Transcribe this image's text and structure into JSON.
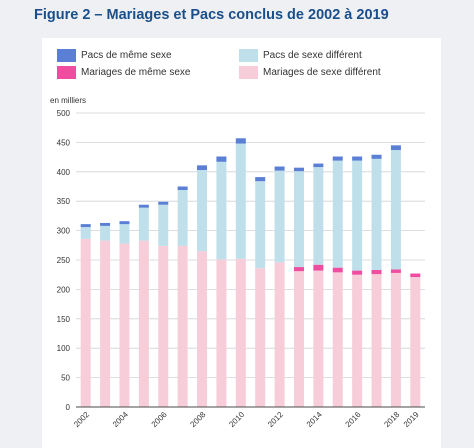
{
  "title": "Figure 2 – Mariages et Pacs conclus de 2002 à 2019",
  "chart_data": {
    "type": "bar",
    "stacked": true,
    "ylabel": "en milliers",
    "ylim": [
      0,
      500
    ],
    "yticks": [
      0,
      50,
      100,
      150,
      200,
      250,
      300,
      350,
      400,
      450,
      500
    ],
    "grid": true,
    "categories": [
      "2002",
      "2003",
      "2004",
      "2005",
      "2006",
      "2007",
      "2008",
      "2009",
      "2010",
      "2011",
      "2012",
      "2013",
      "2014",
      "2015",
      "2016",
      "2017",
      "2018",
      "2019"
    ],
    "xtick_labels": [
      "2002",
      "2004",
      "2006",
      "2008",
      "2010",
      "2012",
      "2014",
      "2016",
      "2018",
      "2019"
    ],
    "legend_position": "top",
    "series": [
      {
        "name": "Mariages de sexe différent",
        "color": "#f7cdd9",
        "values": [
          286,
          283,
          278,
          283,
          274,
          274,
          265,
          251,
          252,
          236,
          246,
          231,
          232,
          229,
          225,
          226,
          228,
          221
        ]
      },
      {
        "name": "Mariages de même sexe",
        "color": "#ef4da0",
        "values": [
          0,
          0,
          0,
          0,
          0,
          0,
          0,
          0,
          0,
          0,
          0,
          7,
          10,
          8,
          7,
          7,
          6,
          6
        ]
      },
      {
        "name": "Pacs de sexe différent",
        "color": "#bfe0ea",
        "values": [
          20,
          25,
          33,
          56,
          70,
          95,
          138,
          166,
          196,
          148,
          156,
          163,
          166,
          182,
          187,
          189,
          203,
          0
        ]
      },
      {
        "name": "Pacs de même sexe",
        "color": "#5b7fd4",
        "values": [
          5,
          5,
          5,
          5,
          5,
          6,
          8,
          9,
          9,
          7,
          7,
          6,
          6,
          7,
          7,
          7,
          8,
          0
        ]
      }
    ],
    "legend": [
      {
        "name": "Pacs de même sexe",
        "color": "#5b7fd4"
      },
      {
        "name": "Pacs de sexe différent",
        "color": "#bfe0ea"
      },
      {
        "name": "Mariages de même sexe",
        "color": "#ef4da0"
      },
      {
        "name": "Mariages de sexe différent",
        "color": "#f7cdd9"
      }
    ]
  }
}
